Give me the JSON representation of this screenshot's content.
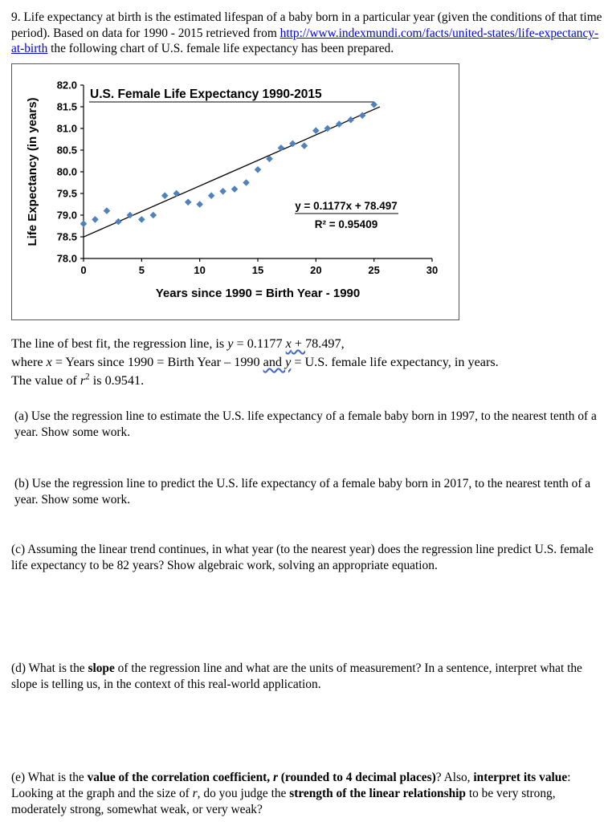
{
  "intro": {
    "before_link": "9. Life expectancy at birth is the estimated lifespan of a baby born in a particular year (given the conditions of that time period).  Based on data for 1990 - 2015 retrieved from ",
    "link": "http://www.indexmundi.com/facts/united-states/life-expectancy-at-birth",
    "after_link": " the following chart of U.S. female life expectancy has been prepared."
  },
  "chart_data": {
    "type": "scatter",
    "title": "U.S. Female Life Expectancy 1990-2015",
    "xlabel": "Years since 1990 = Birth Year - 1990",
    "ylabel": "Life Expectancy (in years)",
    "xlim": [
      0,
      30
    ],
    "ylim": [
      78.0,
      82.0
    ],
    "x_ticks": [
      0,
      5,
      10,
      15,
      20,
      25,
      30
    ],
    "y_ticks": [
      78.0,
      78.5,
      79.0,
      79.5,
      80.0,
      80.5,
      81.0,
      81.5,
      82.0
    ],
    "points": [
      [
        0,
        78.8
      ],
      [
        1,
        78.9
      ],
      [
        2,
        79.1
      ],
      [
        3,
        78.85
      ],
      [
        4,
        79.0
      ],
      [
        5,
        78.9
      ],
      [
        6,
        79.0
      ],
      [
        7,
        79.45
      ],
      [
        8,
        79.5
      ],
      [
        9,
        79.3
      ],
      [
        10,
        79.25
      ],
      [
        11,
        79.45
      ],
      [
        12,
        79.55
      ],
      [
        13,
        79.6
      ],
      [
        14,
        79.75
      ],
      [
        15,
        80.05
      ],
      [
        16,
        80.3
      ],
      [
        17,
        80.55
      ],
      [
        18,
        80.65
      ],
      [
        19,
        80.6
      ],
      [
        20,
        80.95
      ],
      [
        21,
        81.0
      ],
      [
        22,
        81.1
      ],
      [
        23,
        81.2
      ],
      [
        24,
        81.3
      ],
      [
        25,
        81.55
      ]
    ],
    "trendline": {
      "slope": 0.1177,
      "intercept": 78.497,
      "x_start": 0,
      "x_end": 25.5
    },
    "equation_label": "y = 0.1177x + 78.497",
    "r2_label": "R² = 0.95409",
    "marker_color": "#4F81BD",
    "grid": false,
    "legend": "none"
  },
  "regression": {
    "line1": {
      "a": "The line of best fit, the regression line, is ",
      "y_var": "y",
      "b": " = 0.1177 ",
      "x_var": "x",
      "plus": " + ",
      "c": "78.497,"
    },
    "line2": {
      "a": "where ",
      "x_var": "x",
      "b": " = Years since 1990 = Birth Year – 1990 ",
      "and": "and ",
      "y_var": "y",
      "c": " = U.S. female life expectancy, in years."
    },
    "line3": {
      "a": "The value of ",
      "r_var": "r",
      "sup": "2",
      "b": " is 0.9541."
    }
  },
  "questions": {
    "a": {
      "text": "(a)  Use the regression line to estimate the U.S. life expectancy of a female baby born in 1997, to the nearest tenth of a year. Show some work."
    },
    "b": {
      "text": "(b)  Use the regression line to predict the U.S. life expectancy of a female baby born in 2017, to the nearest tenth of a year. Show some work."
    },
    "c": {
      "text": "(c)  Assuming the linear trend continues, in what year (to the nearest year) does the regression line predict U.S. female life expectancy to be 82 years? Show algebraic work, solving an appropriate equation."
    },
    "d": {
      "pre": "(d)  What is the ",
      "bold1": "slope",
      "post": " of the regression line and what are the units of measurement? In a sentence, interpret what the slope is telling us, in the context of this real-world application."
    },
    "e": {
      "s1": "(e)  What is the ",
      "b1": "value of the correlation coefficient, ",
      "b1r": "r",
      "b2": " (rounded to 4 decimal places)",
      "s2": "? Also, ",
      "b3": "interpret its value",
      "s3": ": Looking at the graph and the size of ",
      "r": "r",
      "s4": ", do you judge the ",
      "b4": "strength of the linear relationship",
      "s5": " to be very strong, moderately strong, somewhat weak, or very weak?"
    }
  }
}
